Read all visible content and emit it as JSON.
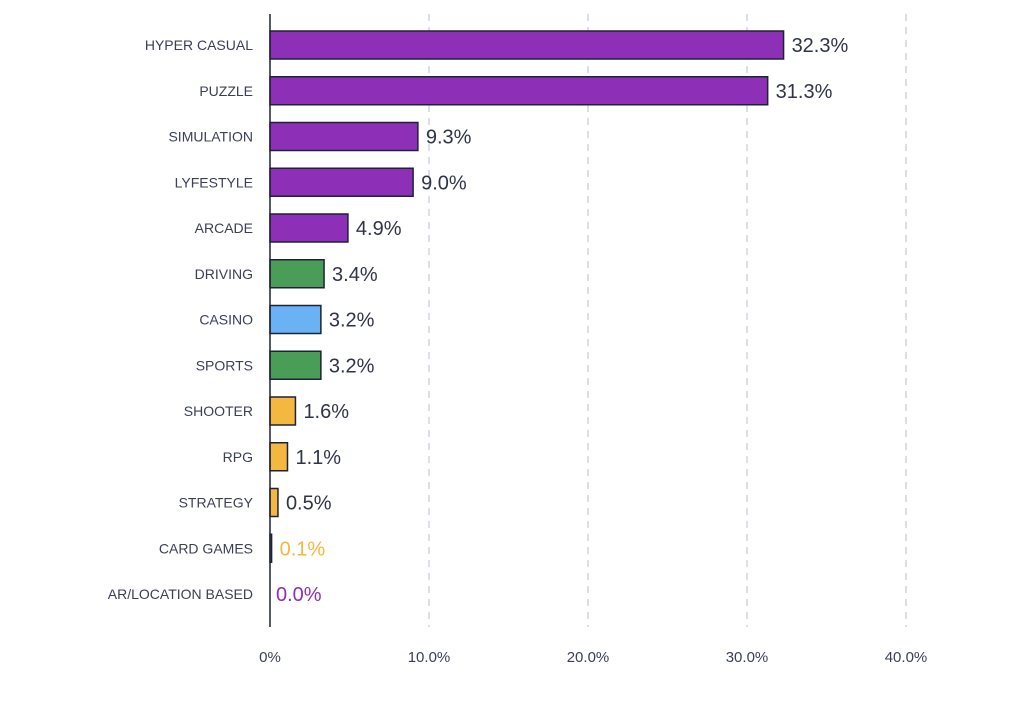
{
  "chart_data": {
    "type": "bar",
    "orientation": "horizontal",
    "title": "",
    "xlabel": "",
    "ylabel": "",
    "xlim": [
      0,
      40
    ],
    "grid": "vertical-dashed",
    "ticks": [
      "0%",
      "10.0%",
      "20.0%",
      "30.0%",
      "40.0%"
    ],
    "tick_values": [
      0,
      10,
      20,
      30,
      40
    ],
    "categories": [
      "HYPER CASUAL",
      "PUZZLE",
      "SIMULATION",
      "LYFESTYLE",
      "ARCADE",
      "DRIVING",
      "CASINO",
      "SPORTS",
      "SHOOTER",
      "RPG",
      "STRATEGY",
      "CARD GAMES",
      "AR/LOCATION BASED"
    ],
    "values": [
      32.3,
      31.3,
      9.3,
      9.0,
      4.9,
      3.4,
      3.2,
      3.2,
      1.6,
      1.1,
      0.5,
      0.1,
      0.0
    ],
    "value_labels": [
      "32.3%",
      "31.3%",
      "9.3%",
      "9.0%",
      "4.9%",
      "3.4%",
      "3.2%",
      "3.2%",
      "1.6%",
      "1.1%",
      "0.5%",
      "0.1%",
      "0.0%"
    ],
    "bar_colors": [
      "#8e2fb8",
      "#8e2fb8",
      "#8e2fb8",
      "#8e2fb8",
      "#8e2fb8",
      "#4a9d57",
      "#6bb2f5",
      "#4a9d57",
      "#f4b73f",
      "#f4b73f",
      "#f4b73f",
      "#f4b73f",
      "#8e2fb8"
    ],
    "label_colors": [
      "#2f3447",
      "#2f3447",
      "#2f3447",
      "#2f3447",
      "#2f3447",
      "#2f3447",
      "#2f3447",
      "#2f3447",
      "#2f3447",
      "#2f3447",
      "#2f3447",
      "#f4b73f",
      "#8e2fb8"
    ]
  },
  "colors": {
    "axis": "#1e2236",
    "grid": "#c9cde0",
    "bar_outline": "#1e2236",
    "text": "#3a3f55"
  }
}
